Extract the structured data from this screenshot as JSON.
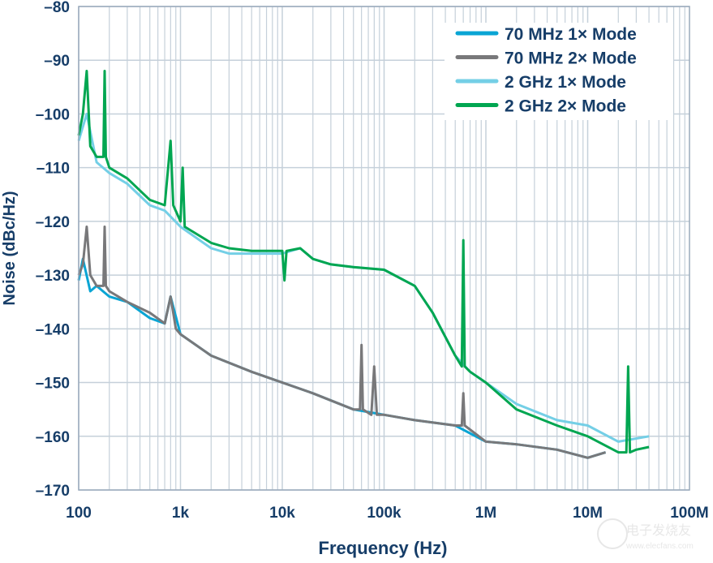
{
  "chart_data": {
    "type": "line",
    "title": "",
    "xlabel": "Frequency (Hz)",
    "ylabel": "Noise (dBc/Hz)",
    "xscale": "log",
    "xlim": [
      100,
      100000000
    ],
    "ylim": [
      -170,
      -80
    ],
    "grid": true,
    "legend_position": "top-right",
    "x_ticks": [
      {
        "value": 100,
        "label": "100"
      },
      {
        "value": 1000,
        "label": "1k"
      },
      {
        "value": 10000,
        "label": "10k"
      },
      {
        "value": 100000,
        "label": "100k"
      },
      {
        "value": 1000000,
        "label": "1M"
      },
      {
        "value": 10000000,
        "label": "10M"
      },
      {
        "value": 100000000,
        "label": "100M"
      }
    ],
    "y_ticks": [
      {
        "value": -80,
        "label": "–80"
      },
      {
        "value": -90,
        "label": "–90"
      },
      {
        "value": -100,
        "label": "–100"
      },
      {
        "value": -110,
        "label": "–110"
      },
      {
        "value": -120,
        "label": "–120"
      },
      {
        "value": -130,
        "label": "–130"
      },
      {
        "value": -140,
        "label": "–140"
      },
      {
        "value": -150,
        "label": "–150"
      },
      {
        "value": -160,
        "label": "–160"
      },
      {
        "value": -170,
        "label": "–170"
      }
    ],
    "series": [
      {
        "name": "70 MHz 1× Mode",
        "color": "#0aa5d4",
        "x": [
          100,
          110,
          130,
          150,
          200,
          300,
          500,
          700,
          800,
          1000,
          2000,
          5000,
          10000,
          20000,
          50000,
          100000,
          200000,
          500000,
          1000000,
          2000000,
          5000000,
          10000000,
          15000000
        ],
        "y": [
          -131,
          -127,
          -133,
          -132,
          -134,
          -135,
          -138,
          -139,
          -134,
          -141,
          -145,
          -148,
          -150,
          -152,
          -155,
          -156,
          -157,
          -158,
          -161,
          -161.5,
          -162.5,
          -164,
          -163
        ]
      },
      {
        "name": "70 MHz 2× Mode",
        "color": "#78787a",
        "x": [
          100,
          110,
          120,
          130,
          150,
          175,
          180,
          185,
          200,
          300,
          500,
          700,
          800,
          900,
          1000,
          2000,
          5000,
          10000,
          20000,
          50000,
          58000,
          60000,
          62000,
          75000,
          80000,
          85000,
          100000,
          200000,
          500000,
          580000,
          600000,
          620000,
          1000000,
          2000000,
          5000000,
          10000000,
          15000000
        ],
        "y": [
          -130,
          -128,
          -121,
          -130,
          -132,
          -132,
          -121,
          -132,
          -133,
          -135,
          -137,
          -139,
          -134,
          -140,
          -141,
          -145,
          -148,
          -150,
          -152,
          -155,
          -155,
          -143,
          -155,
          -156,
          -147,
          -156,
          -156,
          -157,
          -158,
          -158,
          -152,
          -158,
          -161,
          -161.5,
          -162.5,
          -164,
          -163
        ]
      },
      {
        "name": "2 GHz 1× Mode",
        "color": "#74cfe6",
        "x": [
          100,
          120,
          150,
          200,
          300,
          500,
          700,
          1000,
          2000,
          3000,
          5000,
          10000,
          15000,
          20000,
          30000,
          50000,
          100000,
          200000,
          300000,
          500000,
          700000,
          1000000,
          2000000,
          5000000,
          10000000,
          20000000,
          40000000
        ],
        "y": [
          -105,
          -100,
          -109,
          -111,
          -113,
          -117,
          -118,
          -121,
          -125,
          -126,
          -126,
          -126,
          -125,
          -127,
          -128,
          -128.5,
          -129,
          -132,
          -137,
          -145,
          -148,
          -150,
          -154,
          -157,
          -158,
          -161,
          -160
        ]
      },
      {
        "name": "2 GHz 2× Mode",
        "color": "#00a651",
        "x": [
          100,
          110,
          120,
          130,
          150,
          175,
          180,
          185,
          200,
          300,
          500,
          700,
          800,
          850,
          1000,
          1050,
          1100,
          2000,
          3000,
          5000,
          10000,
          10500,
          11000,
          15000,
          20000,
          30000,
          50000,
          100000,
          200000,
          300000,
          500000,
          580000,
          600000,
          620000,
          700000,
          1000000,
          2000000,
          5000000,
          10000000,
          20000000,
          24000000,
          25000000,
          26000000,
          30000000,
          40000000
        ],
        "y": [
          -104,
          -100,
          -92,
          -106,
          -108,
          -108,
          -92,
          -108,
          -110,
          -112,
          -116,
          -117,
          -105,
          -117,
          -120,
          -110,
          -121,
          -124,
          -125,
          -125.5,
          -125.5,
          -131,
          -125.5,
          -125,
          -127,
          -128,
          -128.5,
          -129,
          -132,
          -137,
          -145,
          -147,
          -123.5,
          -147,
          -148,
          -150,
          -155,
          -158,
          -160,
          -163,
          -163,
          -147,
          -163,
          -162.5,
          -162
        ]
      }
    ]
  },
  "watermark": {
    "logo_text": "电子发烧友",
    "url": "www.elecfans.com"
  }
}
